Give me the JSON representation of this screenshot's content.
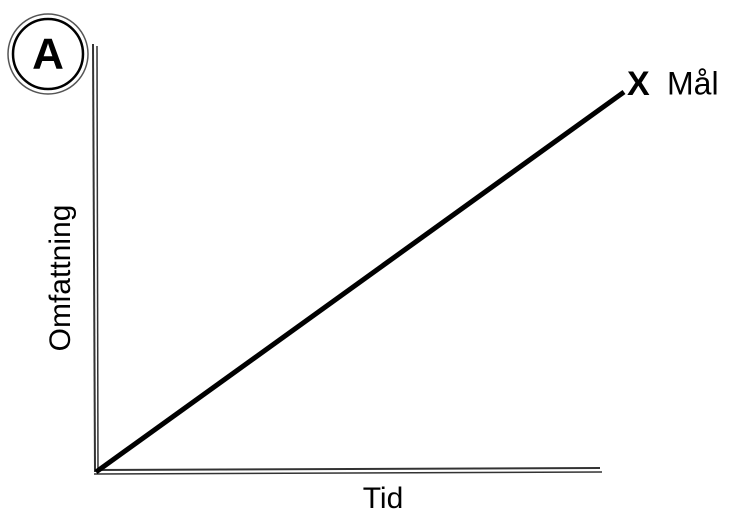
{
  "badge": "A",
  "y_axis_label": "Omfattning",
  "x_axis_label": "Tid",
  "goal": {
    "marker": "X",
    "label": "Mål"
  }
}
